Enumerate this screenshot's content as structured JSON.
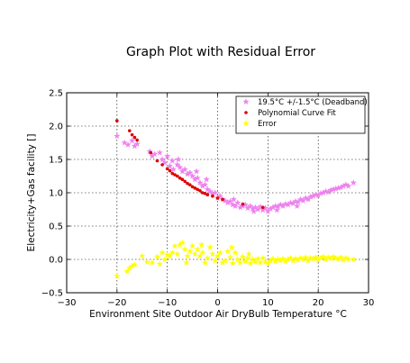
{
  "chart_data": {
    "type": "scatter",
    "title": "Graph Plot with Residual Error",
    "xlabel": "Environment Site Outdoor Air DryBulb Temperature °C",
    "ylabel": "Electricity+Gas facility []",
    "xlim": [
      -30,
      30
    ],
    "ylim": [
      -0.5,
      2.5
    ],
    "xticks": [
      "−30",
      "−20",
      "−10",
      "0",
      "10",
      "20",
      "30"
    ],
    "yticks": [
      "−0.5",
      "0.0",
      "0.5",
      "1.0",
      "1.5",
      "2.0",
      "2.5"
    ],
    "grid": true,
    "legend_position": "top-right",
    "series": [
      {
        "name": "19.5°C +/-1.5°C (Deadband)",
        "marker": "star",
        "color": "#ee82ee",
        "points": [
          [
            -20,
            1.85
          ],
          [
            -18.5,
            1.75
          ],
          [
            -17.8,
            1.72
          ],
          [
            -17,
            1.78
          ],
          [
            -16.5,
            1.7
          ],
          [
            -16,
            1.73
          ],
          [
            -13.5,
            1.62
          ],
          [
            -13,
            1.55
          ],
          [
            -12.5,
            1.58
          ],
          [
            -11.5,
            1.6
          ],
          [
            -11,
            1.5
          ],
          [
            -10.5,
            1.45
          ],
          [
            -10,
            1.55
          ],
          [
            -9.5,
            1.4
          ],
          [
            -9,
            1.48
          ],
          [
            -8.8,
            1.35
          ],
          [
            -8,
            1.42
          ],
          [
            -7.5,
            1.38
          ],
          [
            -7,
            1.32
          ],
          [
            -6.5,
            1.35
          ],
          [
            -6,
            1.28
          ],
          [
            -5.5,
            1.3
          ],
          [
            -5,
            1.25
          ],
          [
            -4.5,
            1.2
          ],
          [
            -4,
            1.22
          ],
          [
            -3.5,
            1.15
          ],
          [
            -3,
            1.1
          ],
          [
            -2.5,
            1.12
          ],
          [
            -2,
            1.05
          ],
          [
            -1.5,
            1.02
          ],
          [
            -1,
            0.98
          ],
          [
            -0.5,
            1.0
          ],
          [
            0,
            0.92
          ],
          [
            0.5,
            0.95
          ],
          [
            1,
            0.9
          ],
          [
            1.5,
            0.88
          ],
          [
            2,
            0.85
          ],
          [
            2.5,
            0.87
          ],
          [
            3,
            0.82
          ],
          [
            3.5,
            0.8
          ],
          [
            4,
            0.85
          ],
          [
            4.5,
            0.78
          ],
          [
            5,
            0.8
          ],
          [
            5.5,
            0.82
          ],
          [
            6,
            0.77
          ],
          [
            6.5,
            0.8
          ],
          [
            7,
            0.76
          ],
          [
            7.5,
            0.78
          ],
          [
            8,
            0.75
          ],
          [
            8.5,
            0.79
          ],
          [
            9,
            0.74
          ],
          [
            9.5,
            0.77
          ],
          [
            10,
            0.72
          ],
          [
            10.5,
            0.76
          ],
          [
            11,
            0.78
          ],
          [
            11.5,
            0.8
          ],
          [
            12,
            0.79
          ],
          [
            12.5,
            0.82
          ],
          [
            13,
            0.8
          ],
          [
            13.5,
            0.83
          ],
          [
            14,
            0.82
          ],
          [
            14.5,
            0.85
          ],
          [
            15,
            0.84
          ],
          [
            15.5,
            0.87
          ],
          [
            16,
            0.86
          ],
          [
            16.5,
            0.9
          ],
          [
            17,
            0.88
          ],
          [
            17.5,
            0.92
          ],
          [
            18,
            0.9
          ],
          [
            18.5,
            0.94
          ],
          [
            19,
            0.95
          ],
          [
            19.5,
            0.97
          ],
          [
            20,
            0.96
          ],
          [
            20.5,
            0.99
          ],
          [
            21,
            1.0
          ],
          [
            21.5,
            1.02
          ],
          [
            22,
            1.01
          ],
          [
            22.5,
            1.04
          ],
          [
            23,
            1.05
          ],
          [
            23.5,
            1.06
          ],
          [
            24,
            1.07
          ],
          [
            24.5,
            1.08
          ],
          [
            25,
            1.1
          ],
          [
            25.5,
            1.12
          ],
          [
            26,
            1.1
          ],
          [
            27,
            1.15
          ],
          [
            -7.8,
            1.5
          ],
          [
            -4.2,
            1.32
          ],
          [
            -2.2,
            1.2
          ],
          [
            3.2,
            0.9
          ],
          [
            7.2,
            0.72
          ],
          [
            11.8,
            0.74
          ],
          [
            15.8,
            0.8
          ]
        ]
      },
      {
        "name": "Polynomial Curve Fit",
        "marker": "dot",
        "color": "#dd0000",
        "points": [
          [
            -20,
            2.08
          ],
          [
            -17.5,
            1.93
          ],
          [
            -17,
            1.87
          ],
          [
            -16.5,
            1.83
          ],
          [
            -16,
            1.79
          ],
          [
            -13.3,
            1.6
          ],
          [
            -12,
            1.48
          ],
          [
            -11,
            1.42
          ],
          [
            -10,
            1.36
          ],
          [
            -9.5,
            1.33
          ],
          [
            -9,
            1.29
          ],
          [
            -8.5,
            1.27
          ],
          [
            -8,
            1.25
          ],
          [
            -7.5,
            1.22
          ],
          [
            -7,
            1.2
          ],
          [
            -6.5,
            1.17
          ],
          [
            -6,
            1.14
          ],
          [
            -5.5,
            1.12
          ],
          [
            -5,
            1.09
          ],
          [
            -4.5,
            1.07
          ],
          [
            -4,
            1.05
          ],
          [
            -3.5,
            1.03
          ],
          [
            -3,
            1.0
          ],
          [
            -2.5,
            0.99
          ],
          [
            -2,
            0.97
          ],
          [
            -1,
            0.95
          ],
          [
            0,
            0.92
          ],
          [
            1,
            0.9
          ],
          [
            5,
            0.83
          ],
          [
            9,
            0.78
          ]
        ]
      },
      {
        "name": "Error",
        "marker": "star",
        "color": "#ffff00",
        "points": [
          [
            -20,
            -0.25
          ],
          [
            -18,
            -0.18
          ],
          [
            -17.5,
            -0.13
          ],
          [
            -17,
            -0.1
          ],
          [
            -16.5,
            -0.08
          ],
          [
            -14,
            -0.04
          ],
          [
            -13,
            -0.05
          ],
          [
            -12,
            0.04
          ],
          [
            -11,
            0.1
          ],
          [
            -10.5,
            0.0
          ],
          [
            -10,
            0.07
          ],
          [
            -9.5,
            0.05
          ],
          [
            -9,
            0.1
          ],
          [
            -8.5,
            0.2
          ],
          [
            -8,
            0.08
          ],
          [
            -7.5,
            0.22
          ],
          [
            -7,
            0.25
          ],
          [
            -6.5,
            0.15
          ],
          [
            -6,
            0.05
          ],
          [
            -5.5,
            0.12
          ],
          [
            -5,
            0.2
          ],
          [
            -4.5,
            0.08
          ],
          [
            -4,
            0.15
          ],
          [
            -3.5,
            0.05
          ],
          [
            -3,
            0.1
          ],
          [
            -2.5,
            -0.05
          ],
          [
            -2,
            0.02
          ],
          [
            -1.5,
            0.18
          ],
          [
            -1,
            0.08
          ],
          [
            -0.5,
            -0.02
          ],
          [
            0,
            0.05
          ],
          [
            0.5,
            0.1
          ],
          [
            1,
            -0.05
          ],
          [
            1.5,
            -0.02
          ],
          [
            2,
            0.12
          ],
          [
            2.5,
            0.03
          ],
          [
            3,
            -0.06
          ],
          [
            3.5,
            0.1
          ],
          [
            4,
            0.0
          ],
          [
            4.5,
            -0.05
          ],
          [
            5,
            0.04
          ],
          [
            5.5,
            -0.03
          ],
          [
            6,
            0.02
          ],
          [
            6.5,
            -0.06
          ],
          [
            7,
            0.0
          ],
          [
            7.5,
            -0.04
          ],
          [
            8,
            0.01
          ],
          [
            8.5,
            -0.05
          ],
          [
            9,
            0.02
          ],
          [
            9.5,
            -0.04
          ],
          [
            10,
            -0.06
          ],
          [
            10.5,
            -0.02
          ],
          [
            11,
            0.01
          ],
          [
            11.5,
            -0.03
          ],
          [
            12,
            0.0
          ],
          [
            12.5,
            -0.02
          ],
          [
            13,
            0.01
          ],
          [
            13.5,
            -0.03
          ],
          [
            14,
            0.0
          ],
          [
            14.5,
            0.02
          ],
          [
            15,
            -0.02
          ],
          [
            15.5,
            0.01
          ],
          [
            16,
            -0.01
          ],
          [
            16.5,
            0.02
          ],
          [
            17,
            0.0
          ],
          [
            17.5,
            0.03
          ],
          [
            18,
            -0.02
          ],
          [
            18.5,
            0.02
          ],
          [
            19,
            0.01
          ],
          [
            19.5,
            0.03
          ],
          [
            20,
            -0.01
          ],
          [
            20.5,
            0.02
          ],
          [
            21,
            0.04
          ],
          [
            21.5,
            0.0
          ],
          [
            22,
            0.03
          ],
          [
            22.5,
            0.01
          ],
          [
            23,
            0.04
          ],
          [
            23.5,
            0.02
          ],
          [
            24,
            0.0
          ],
          [
            24.5,
            0.03
          ],
          [
            25,
            -0.01
          ],
          [
            25.5,
            0.02
          ],
          [
            26,
            0.0
          ],
          [
            27,
            0.0
          ],
          [
            -15,
            0.05
          ],
          [
            -3.2,
            0.22
          ],
          [
            2.8,
            0.18
          ],
          [
            6.2,
            0.08
          ],
          [
            -11.5,
            -0.07
          ],
          [
            -6.2,
            -0.05
          ]
        ]
      }
    ]
  }
}
